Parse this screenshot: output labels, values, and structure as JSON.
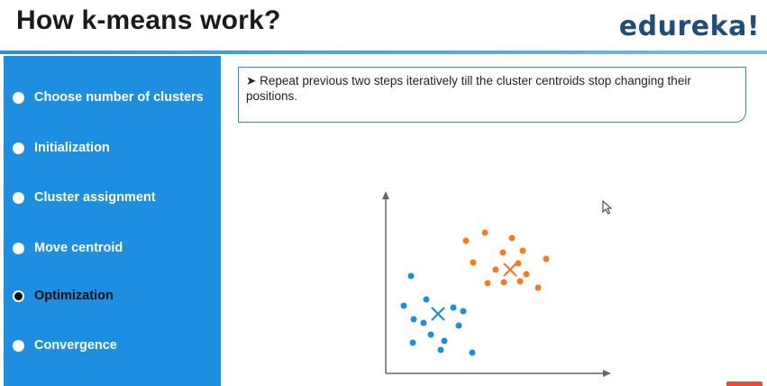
{
  "header": {
    "title": "How k-means work?",
    "logo": "edureka!"
  },
  "sidebar": {
    "items": [
      {
        "label": "Choose number of clusters",
        "active": false
      },
      {
        "label": "Initialization",
        "active": false
      },
      {
        "label": "Cluster assignment",
        "active": false
      },
      {
        "label": "Move centroid",
        "active": false
      },
      {
        "label": "Optimization",
        "active": true
      },
      {
        "label": "Convergence",
        "active": false
      }
    ]
  },
  "note": {
    "bullet": "➤",
    "text": "Repeat previous two steps iteratively till the cluster centroids stop changing their positions."
  },
  "colors": {
    "sidebar": "#1e8ee0",
    "cluster_blue": "#1c8fdc",
    "cluster_orange": "#f47b20",
    "accent": "#2d8fd1"
  },
  "icons": [
    "cursor-arrow-icon",
    "bullet-arrow-icon",
    "centroid-cross-icon"
  ]
}
